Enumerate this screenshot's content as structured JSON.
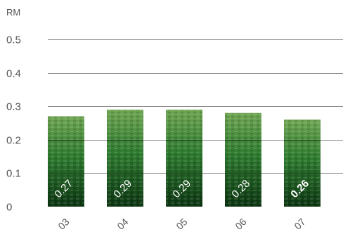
{
  "chart_data": {
    "type": "bar",
    "unit": "RM",
    "categories": [
      "03",
      "04",
      "05",
      "06",
      "07"
    ],
    "values": [
      0.27,
      0.29,
      0.29,
      0.28,
      0.26
    ],
    "value_labels": [
      "0.27",
      "0.29",
      "0.29",
      "0.28",
      "0.26"
    ],
    "yticks": [
      "0",
      "0.1",
      "0.2",
      "0.3",
      "0.4",
      "0.5"
    ],
    "ylim": [
      0,
      0.5
    ],
    "grid": true,
    "highlight_index": 4,
    "colors": {
      "bar_dark": "#0f3f14",
      "bar_mid": "#24742a",
      "bar_light": "#5d9a45",
      "highlight_label": "#2e7d32",
      "grid": "#8a8a8a"
    }
  }
}
